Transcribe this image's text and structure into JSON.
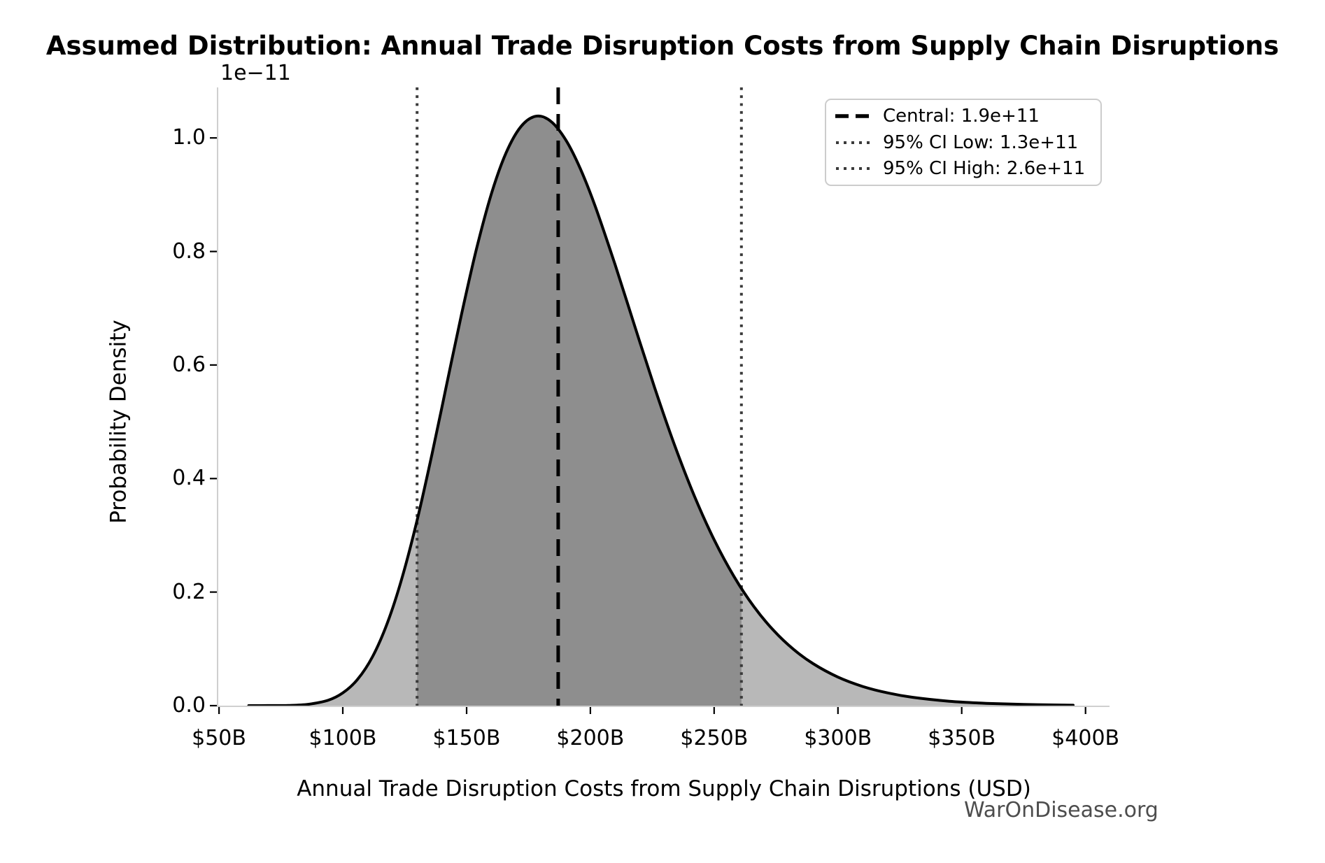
{
  "page": {
    "background": "#ffffff"
  },
  "watermark": "WarOnDisease.org",
  "colors": {
    "curve": "#000000",
    "fill_light": "#b8b8b8",
    "fill_dark": "#8e8e8e",
    "central_line": "#000000",
    "ci_line": "#3a3a3a",
    "spine": "#cfcfcf",
    "tick_mark": "#000000",
    "text": "#000000",
    "legend_border": "#cccccc",
    "watermark_text": "#4d4d4d"
  },
  "chart_data": {
    "type": "area",
    "title": "Assumed Distribution: Annual Trade Disruption Costs from Supply Chain Disruptions",
    "xlabel": "Annual Trade Disruption Costs from Supply Chain Disruptions (USD)",
    "ylabel": "Probability Density",
    "y_offset_label": "1e−11",
    "x_tick_labels": [
      "$50B",
      "$100B",
      "$150B",
      "$200B",
      "$250B",
      "$300B",
      "$350B",
      "$400B"
    ],
    "x_tick_values_billions": [
      50,
      100,
      150,
      200,
      250,
      300,
      350,
      400
    ],
    "y_tick_labels": [
      "0.0",
      "0.2",
      "0.4",
      "0.6",
      "0.8",
      "1.0"
    ],
    "y_tick_values": [
      0,
      0.2,
      0.4,
      0.6,
      0.8,
      1.0
    ],
    "xlim_billions": [
      49.7,
      409.7
    ],
    "ylim": [
      0,
      1.089
    ],
    "grid": false,
    "legend_position": "upper right",
    "curve": {
      "x_billions": [
        62,
        70,
        78,
        86,
        94,
        100,
        106,
        112,
        118,
        124,
        130,
        136,
        142,
        148,
        154,
        160,
        166,
        172,
        178,
        184,
        190,
        196,
        202,
        210,
        218,
        226,
        234,
        242,
        250,
        258,
        266,
        274,
        282,
        290,
        300,
        310,
        320,
        330,
        345,
        360,
        375,
        390,
        395
      ],
      "density_1e11": [
        0.0,
        0.0001,
        0.0004,
        0.0024,
        0.0094,
        0.0224,
        0.0464,
        0.0862,
        0.1456,
        0.2261,
        0.3265,
        0.4424,
        0.5665,
        0.6903,
        0.8045,
        0.9013,
        0.9743,
        1.0203,
        1.0382,
        1.0294,
        0.997,
        0.9453,
        0.8791,
        0.7767,
        0.6674,
        0.5597,
        0.4591,
        0.3694,
        0.2922,
        0.2275,
        0.1747,
        0.1325,
        0.0994,
        0.0739,
        0.0503,
        0.0338,
        0.0225,
        0.0148,
        0.0078,
        0.0041,
        0.0021,
        0.0011,
        0.0008
      ]
    },
    "shaded_regions": [
      {
        "name": "full-distribution",
        "from_billions": 62,
        "to_billions": 395,
        "color": "#b8b8b8"
      },
      {
        "name": "95-ci-region",
        "from_billions": 130,
        "to_billions": 261,
        "color": "#8e8e8e"
      }
    ],
    "vlines": [
      {
        "name": "ci-low-line",
        "x_billions": 130,
        "value_label": "1.3e+11",
        "style": "dotted",
        "color": "#3a3a3a"
      },
      {
        "name": "central-line",
        "x_billions": 187,
        "value_label": "1.9e+11",
        "style": "dashed",
        "color": "#000000"
      },
      {
        "name": "ci-high-line",
        "x_billions": 261,
        "value_label": "2.6e+11",
        "style": "dotted",
        "color": "#3a3a3a"
      }
    ],
    "legend": {
      "items": [
        {
          "label": "Central: 1.9e+11",
          "style": "dashed",
          "color": "#000000"
        },
        {
          "label": "95% CI Low: 1.3e+11",
          "style": "dotted",
          "color": "#3a3a3a"
        },
        {
          "label": "95% CI High: 2.6e+11",
          "style": "dotted",
          "color": "#3a3a3a"
        }
      ]
    }
  }
}
